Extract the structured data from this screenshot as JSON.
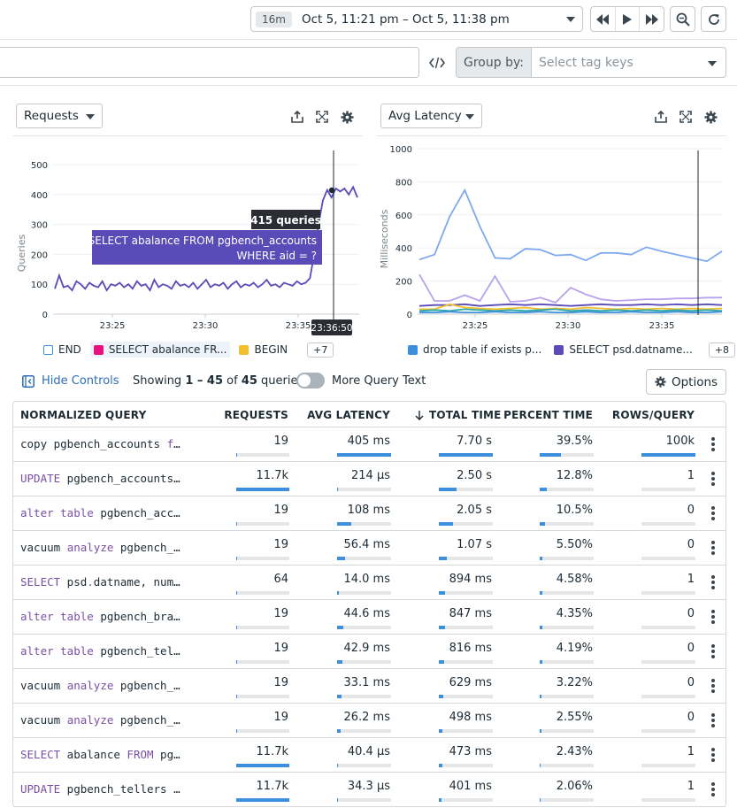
{
  "header": {
    "time_badge": "16m",
    "time_range": "Oct 5, 11:21 pm – Oct 5, 11:38 pm"
  },
  "search": {
    "group_by_label": "Group by:",
    "group_by_placeholder": "Select tag keys"
  },
  "left_chart": {
    "metric": "Requests",
    "ylabel": "Queries",
    "y_ticks": [
      "0",
      "100",
      "200",
      "300",
      "400",
      "500"
    ],
    "x_ticks": [
      "23:25",
      "23:30",
      "23:35"
    ],
    "tooltip_value": "415 queries",
    "tooltip_query_line1": "SELECT abalance FROM pgbench_accounts",
    "tooltip_query_line2": "WHERE aid = ?",
    "cursor_time": "23:36:50",
    "legend": [
      {
        "label": "END",
        "color": "#ffffff"
      },
      {
        "label": "SELECT abalance FR...",
        "color": "#e8117f"
      },
      {
        "label": "BEGIN",
        "color": "#f2be2c"
      }
    ],
    "legend_more": "+7"
  },
  "right_chart": {
    "metric": "Avg Latency",
    "ylabel": "Milliseconds",
    "y_ticks": [
      "0",
      "200",
      "400",
      "600",
      "800",
      "1000"
    ],
    "x_ticks": [
      "23:25",
      "23:30",
      "23:35"
    ],
    "legend": [
      {
        "label": "drop table if exists p...",
        "color": "#3c8fdd"
      },
      {
        "label": "SELECT psd.datname...",
        "color": "#5a4bb8"
      }
    ],
    "legend_more": "+8"
  },
  "chart_data": [
    {
      "type": "line",
      "ylabel": "Queries",
      "ylim": [
        0,
        500
      ],
      "x_ticks": [
        "23:25",
        "23:30",
        "23:35"
      ],
      "series": [
        {
          "name": "SELECT abalance FROM pgbench_accounts WHERE aid = ?",
          "color": "#5a4bb8",
          "values": [
            85,
            130,
            90,
            95,
            80,
            110,
            100,
            85,
            105,
            95,
            90,
            110,
            80,
            100,
            95,
            105,
            90,
            100,
            85,
            110,
            95,
            100,
            80,
            115,
            90,
            100,
            95,
            85,
            110,
            95,
            100,
            90,
            105,
            85,
            100,
            115,
            90,
            100,
            95,
            105,
            85,
            100,
            110,
            90,
            100,
            95,
            105,
            90,
            100,
            115,
            95,
            100,
            90,
            105,
            100,
            95,
            110,
            100,
            105,
            120,
            200,
            300,
            380,
            415,
            390,
            420,
            410,
            420,
            400,
            425,
            390
          ]
        }
      ]
    },
    {
      "type": "line",
      "ylabel": "Milliseconds",
      "ylim": [
        0,
        1000
      ],
      "x_ticks": [
        "23:25",
        "23:30",
        "23:35"
      ],
      "series": [
        {
          "name": "drop table if exists p...",
          "color": "#7fa8f0",
          "values": [
            330,
            360,
            590,
            750,
            530,
            340,
            335,
            395,
            390,
            355,
            360,
            325,
            370,
            370,
            360,
            405,
            380,
            360,
            340,
            320,
            380
          ]
        },
        {
          "name": "SELECT psd.datname...",
          "color": "#5a4bb8",
          "values": [
            50,
            55,
            55,
            60,
            50,
            55,
            60,
            55,
            60,
            55,
            50,
            55,
            60,
            55,
            55,
            60,
            55,
            60,
            55,
            60,
            55
          ]
        },
        {
          "color": "#b9a2ec",
          "values": [
            240,
            80,
            80,
            115,
            80,
            230,
            75,
            80,
            100,
            70,
            160,
            120,
            90,
            80,
            85,
            90,
            90,
            95,
            95,
            100,
            100
          ]
        },
        {
          "color": "#f2be2c",
          "values": [
            30,
            30,
            60,
            40,
            35,
            30,
            35,
            40,
            30,
            35,
            30,
            40,
            35,
            30,
            35,
            30,
            35,
            30,
            35,
            30,
            35
          ]
        },
        {
          "color": "#2fa9a5",
          "values": [
            20,
            25,
            20,
            30,
            25,
            20,
            25,
            20,
            25,
            30,
            20,
            25,
            20,
            25,
            20,
            25,
            20,
            25,
            20,
            25,
            20
          ]
        },
        {
          "color": "#3c8fdd",
          "values": [
            10,
            10,
            15,
            10,
            10,
            15,
            10,
            10,
            15,
            10,
            10,
            15,
            10,
            10,
            15,
            10,
            10,
            15,
            10,
            10,
            15
          ]
        }
      ]
    }
  ],
  "controls": {
    "hide_controls": "Hide Controls",
    "showing_prefix": "Showing ",
    "showing_range": "1 – 45",
    "showing_of": " of ",
    "showing_total": "45",
    "showing_suffix": " queries",
    "more_query_text": "More Query Text",
    "options": "Options"
  },
  "table": {
    "columns": {
      "query": "NORMALIZED QUERY",
      "requests": "REQUESTS",
      "avg_latency": "AVG LATENCY",
      "total_time": "TOTAL TIME",
      "percent_time": "PERCENT TIME",
      "rows_query": "ROWS/QUERY"
    },
    "rows": [
      {
        "kw": "",
        "rest": "copy pgbench_accounts ",
        "kw2": "f",
        "tail": "…",
        "requests": "19",
        "req_frac": 0.002,
        "avg_latency": "405 ms",
        "lat_frac": 1.0,
        "total_time": "7.70 s",
        "tot_frac": 1.0,
        "percent_time": "39.5%",
        "pct_frac": 0.395,
        "rows_query": "100k",
        "rows_frac": 1.0
      },
      {
        "kw": "UPDATE",
        "rest": " pgbench_accounts…",
        "kw2": "",
        "tail": "",
        "requests": "11.7k",
        "req_frac": 1.0,
        "avg_latency": "214 µs",
        "lat_frac": 0.003,
        "total_time": "2.50 s",
        "tot_frac": 0.32,
        "percent_time": "12.8%",
        "pct_frac": 0.128,
        "rows_query": "1",
        "rows_frac": 0.0
      },
      {
        "kw": "alter table",
        "rest": " pgbench_acc…",
        "kw2": "",
        "tail": "",
        "requests": "19",
        "req_frac": 0.002,
        "avg_latency": "108 ms",
        "lat_frac": 0.27,
        "total_time": "2.05 s",
        "tot_frac": 0.27,
        "percent_time": "10.5%",
        "pct_frac": 0.105,
        "rows_query": "0",
        "rows_frac": 0.0
      },
      {
        "kw": "",
        "rest": "vacuum ",
        "kw2": "analyze",
        "tail": " pgbench_…",
        "requests": "19",
        "req_frac": 0.002,
        "avg_latency": "56.4 ms",
        "lat_frac": 0.14,
        "total_time": "1.07 s",
        "tot_frac": 0.14,
        "percent_time": "5.50%",
        "pct_frac": 0.055,
        "rows_query": "0",
        "rows_frac": 0.0
      },
      {
        "kw": "SELECT",
        "rest": " psd",
        "kw2": ".",
        "tail": "datname, num…",
        "requests": "64",
        "req_frac": 0.006,
        "avg_latency": "14.0 ms",
        "lat_frac": 0.035,
        "total_time": "894 ms",
        "tot_frac": 0.116,
        "percent_time": "4.58%",
        "pct_frac": 0.046,
        "rows_query": "1",
        "rows_frac": 0.0
      },
      {
        "kw": "alter table",
        "rest": " pgbench_bra…",
        "kw2": "",
        "tail": "",
        "requests": "19",
        "req_frac": 0.002,
        "avg_latency": "44.6 ms",
        "lat_frac": 0.11,
        "total_time": "847 ms",
        "tot_frac": 0.11,
        "percent_time": "4.35%",
        "pct_frac": 0.044,
        "rows_query": "0",
        "rows_frac": 0.0
      },
      {
        "kw": "alter table",
        "rest": " pgbench_tel…",
        "kw2": "",
        "tail": "",
        "requests": "19",
        "req_frac": 0.002,
        "avg_latency": "42.9 ms",
        "lat_frac": 0.106,
        "total_time": "816 ms",
        "tot_frac": 0.106,
        "percent_time": "4.19%",
        "pct_frac": 0.042,
        "rows_query": "0",
        "rows_frac": 0.0
      },
      {
        "kw": "",
        "rest": "vacuum ",
        "kw2": "analyze",
        "tail": " pgbench_…",
        "requests": "19",
        "req_frac": 0.002,
        "avg_latency": "33.1 ms",
        "lat_frac": 0.082,
        "total_time": "629 ms",
        "tot_frac": 0.082,
        "percent_time": "3.22%",
        "pct_frac": 0.032,
        "rows_query": "0",
        "rows_frac": 0.0
      },
      {
        "kw": "",
        "rest": "vacuum ",
        "kw2": "analyze",
        "tail": " pgbench_…",
        "requests": "19",
        "req_frac": 0.002,
        "avg_latency": "26.2 ms",
        "lat_frac": 0.065,
        "total_time": "498 ms",
        "tot_frac": 0.065,
        "percent_time": "2.55%",
        "pct_frac": 0.026,
        "rows_query": "0",
        "rows_frac": 0.0
      },
      {
        "kw": "SELECT",
        "rest": " abalance ",
        "kw2": "FROM",
        "tail": " pg…",
        "requests": "11.7k",
        "req_frac": 1.0,
        "avg_latency": "40.4 µs",
        "lat_frac": 0.001,
        "total_time": "473 ms",
        "tot_frac": 0.061,
        "percent_time": "2.43%",
        "pct_frac": 0.024,
        "rows_query": "1",
        "rows_frac": 0.0
      },
      {
        "kw": "UPDATE",
        "rest": " pgbench_tellers …",
        "kw2": "",
        "tail": "",
        "requests": "11.7k",
        "req_frac": 1.0,
        "avg_latency": "34.3 µs",
        "lat_frac": 0.001,
        "total_time": "401 ms",
        "tot_frac": 0.052,
        "percent_time": "2.06%",
        "pct_frac": 0.021,
        "rows_query": "1",
        "rows_frac": 0.0
      }
    ]
  }
}
